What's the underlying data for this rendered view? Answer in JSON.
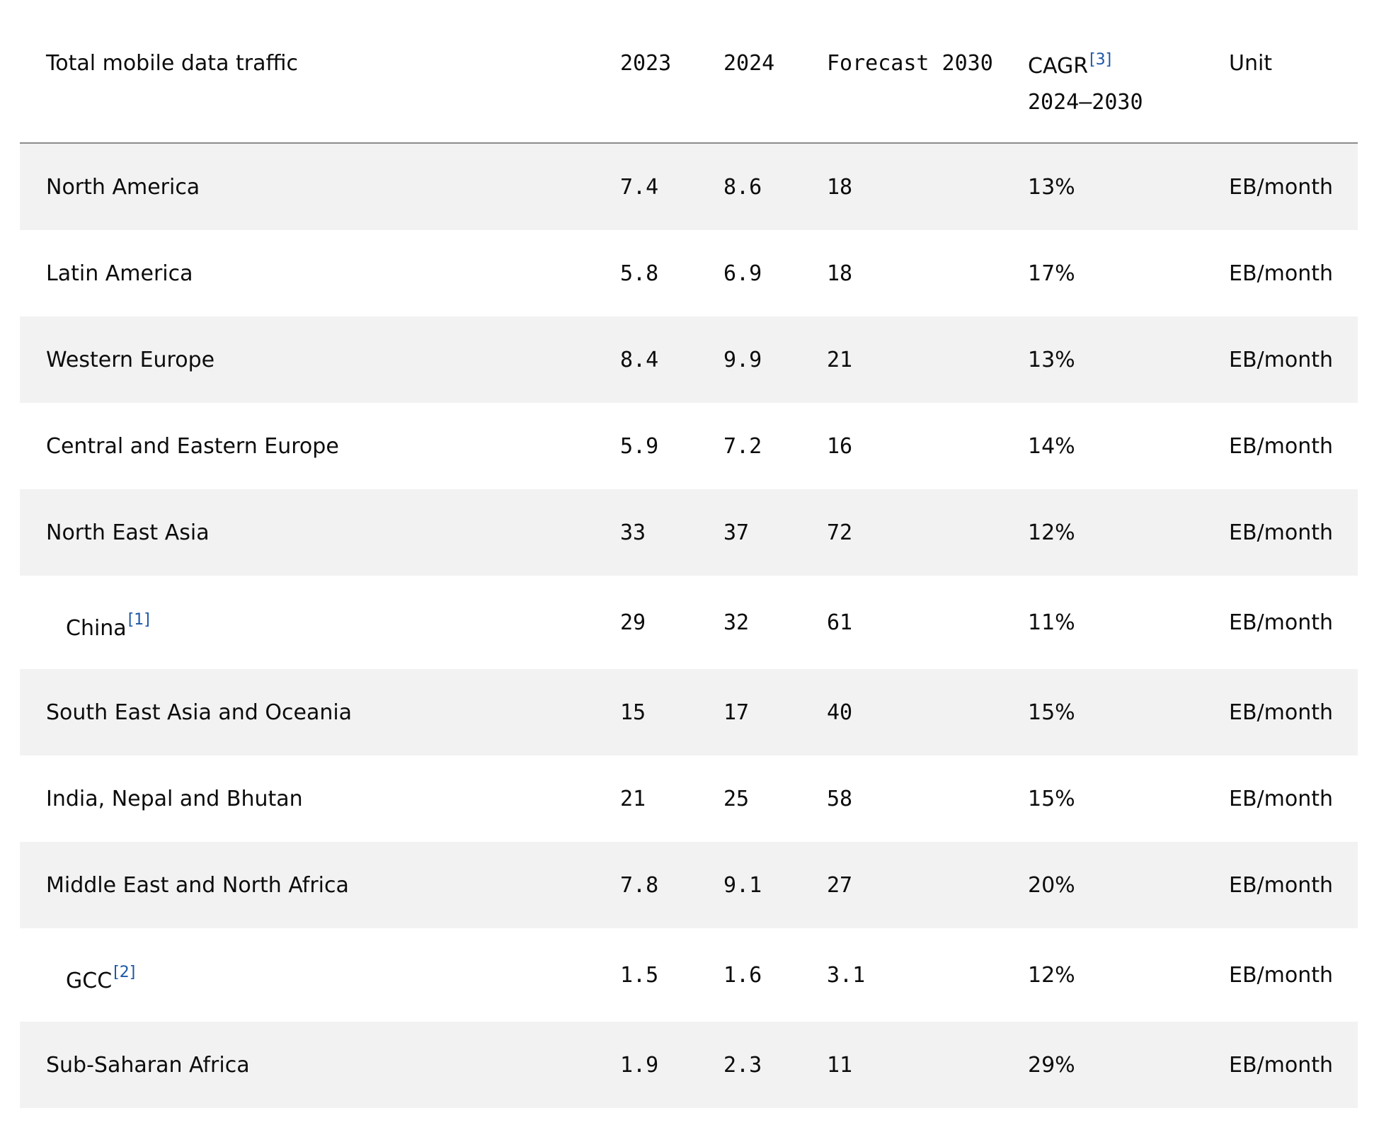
{
  "header": {
    "region": "Total mobile data traffic",
    "y2023": "2023",
    "y2024": "2024",
    "forecast": "Forecast 2030",
    "cagr_label": "CAGR",
    "cagr_ref": "[3]",
    "cagr_period": "2024–2030",
    "unit": "Unit"
  },
  "rows": [
    {
      "region": "North America",
      "ref": "",
      "v2023": "7.4",
      "v2024": "8.6",
      "f2030": "18",
      "cagr": "13%",
      "unit": "EB/month"
    },
    {
      "region": "Latin America",
      "ref": "",
      "v2023": "5.8",
      "v2024": "6.9",
      "f2030": "18",
      "cagr": "17%",
      "unit": "EB/month"
    },
    {
      "region": "Western Europe",
      "ref": "",
      "v2023": "8.4",
      "v2024": "9.9",
      "f2030": "21",
      "cagr": "13%",
      "unit": "EB/month"
    },
    {
      "region": "Central and Eastern Europe",
      "ref": "",
      "v2023": "5.9",
      "v2024": "7.2",
      "f2030": "16",
      "cagr": "14%",
      "unit": "EB/month"
    },
    {
      "region": "North East Asia",
      "ref": "",
      "v2023": "33",
      "v2024": "37",
      "f2030": "72",
      "cagr": "12%",
      "unit": "EB/month"
    },
    {
      "region": "China",
      "ref": "[1]",
      "v2023": "29",
      "v2024": "32",
      "f2030": "61",
      "cagr": "11%",
      "unit": "EB/month"
    },
    {
      "region": "South East Asia and Oceania",
      "ref": "",
      "v2023": "15",
      "v2024": "17",
      "f2030": "40",
      "cagr": "15%",
      "unit": "EB/month"
    },
    {
      "region": "India, Nepal and Bhutan",
      "ref": "",
      "v2023": "21",
      "v2024": "25",
      "f2030": "58",
      "cagr": "15%",
      "unit": "EB/month"
    },
    {
      "region": "Middle East and North Africa",
      "ref": "",
      "v2023": "7.8",
      "v2024": "9.1",
      "f2030": "27",
      "cagr": "20%",
      "unit": "EB/month"
    },
    {
      "region": "GCC",
      "ref": "[2]",
      "v2023": "1.5",
      "v2024": "1.6",
      "f2030": "3.1",
      "cagr": "12%",
      "unit": "EB/month"
    },
    {
      "region": "Sub-Saharan Africa",
      "ref": "",
      "v2023": "1.9",
      "v2024": "2.3",
      "f2030": "11",
      "cagr": "29%",
      "unit": "EB/month"
    }
  ]
}
